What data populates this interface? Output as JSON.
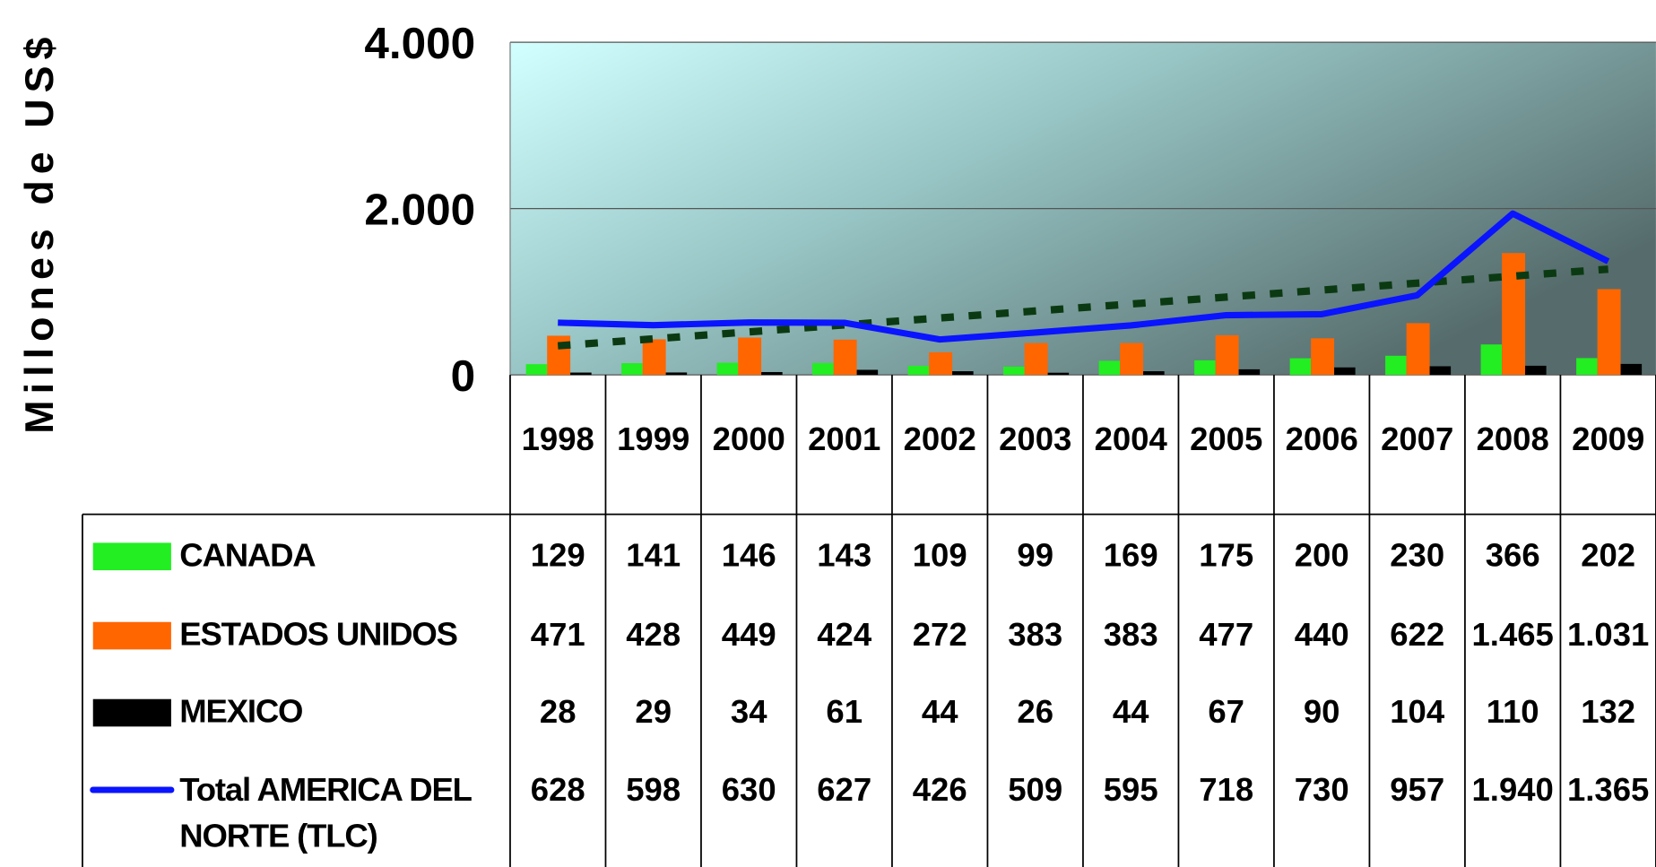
{
  "chart_data": {
    "type": "bar",
    "y_label": "Millones de US$",
    "categories": [
      "1998",
      "1999",
      "2000",
      "2001",
      "2002",
      "2003",
      "2004",
      "2005",
      "2006",
      "2007",
      "2008",
      "2009"
    ],
    "series": [
      {
        "name": "CANADA",
        "color": "#22ee22",
        "type": "bar",
        "values": [
          129,
          141,
          146,
          143,
          109,
          99,
          169,
          175,
          200,
          230,
          366,
          202
        ],
        "value_labels": [
          "129",
          "141",
          "146",
          "143",
          "109",
          "99",
          "169",
          "175",
          "200",
          "230",
          "366",
          "202"
        ]
      },
      {
        "name": "ESTADOS UNIDOS",
        "color": "#ff6600",
        "type": "bar",
        "values": [
          471,
          428,
          449,
          424,
          272,
          383,
          383,
          477,
          440,
          622,
          1465,
          1031
        ],
        "value_labels": [
          "471",
          "428",
          "449",
          "424",
          "272",
          "383",
          "383",
          "477",
          "440",
          "622",
          "1.465",
          "1.031"
        ]
      },
      {
        "name": "MEXICO",
        "color": "#000000",
        "type": "bar",
        "values": [
          28,
          29,
          34,
          61,
          44,
          26,
          44,
          67,
          90,
          104,
          110,
          132
        ],
        "value_labels": [
          "28",
          "29",
          "34",
          "61",
          "44",
          "26",
          "44",
          "67",
          "90",
          "104",
          "110",
          "132"
        ]
      },
      {
        "name": "Total AMERICA DEL NORTE (TLC)",
        "color": "#0a14ff",
        "type": "line",
        "values": [
          628,
          598,
          630,
          627,
          426,
          509,
          595,
          718,
          730,
          957,
          1940,
          1365
        ],
        "value_labels": [
          "628",
          "598",
          "630",
          "627",
          "426",
          "509",
          "595",
          "718",
          "730",
          "957",
          "1.940",
          "1.365"
        ]
      }
    ],
    "ylim": [
      0,
      4000
    ],
    "yticks": [
      0,
      {
        "value": 2000,
        "label": "2.000"
      },
      {
        "value": 4000,
        "label": "4.000"
      }
    ],
    "grid": true,
    "trendline": true,
    "trendline_color": "#0b3a12"
  }
}
